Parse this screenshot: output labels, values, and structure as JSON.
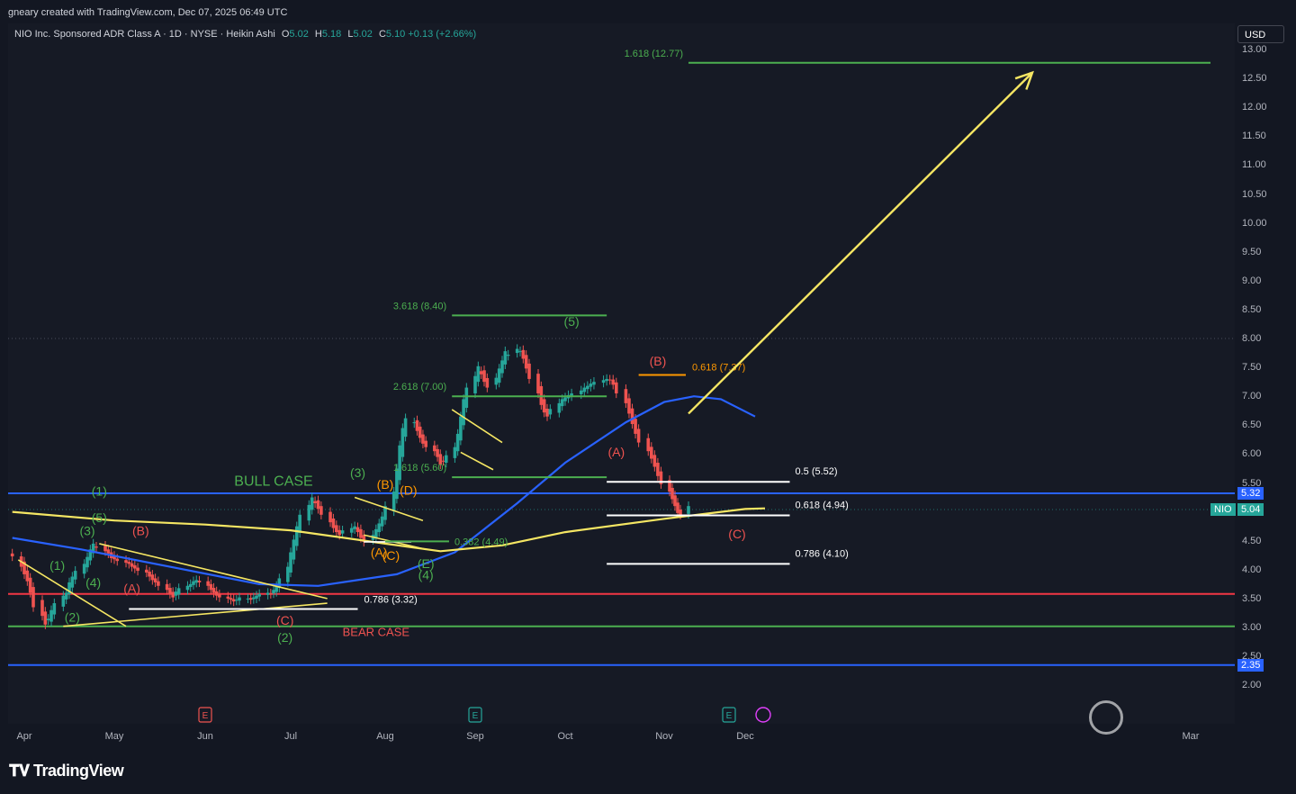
{
  "header": {
    "credit": "gneary created with TradingView.com, Dec 07, 2025 06:49 UTC",
    "symbol_desc": "NIO Inc. Sponsored ADR Class A · 1D · NYSE · Heikin Ashi",
    "open_label": "O",
    "open": "5.02",
    "high_label": "H",
    "high": "5.18",
    "low_label": "L",
    "low": "5.02",
    "close_label": "C",
    "close": "5.10",
    "change": "+0.13 (+2.66%)"
  },
  "currency_button": "USD",
  "footer": {
    "brand": "TradingView"
  },
  "colors": {
    "up": "#26a69a",
    "down": "#ef5350",
    "bg": "#161a25",
    "blue": "#2962ff",
    "yellow": "#f5e663",
    "green": "#4caf50",
    "red": "#f23645"
  },
  "chart_data": {
    "type": "candlestick",
    "style": "Heikin Ashi",
    "symbol": "NIO",
    "grid": false,
    "y_ticks": [
      "13.00",
      "12.50",
      "12.00",
      "11.50",
      "11.00",
      "10.50",
      "10.00",
      "9.50",
      "9.00",
      "8.50",
      "8.00",
      "7.50",
      "7.00",
      "6.50",
      "6.00",
      "5.50",
      "5.32",
      "5.04",
      "4.50",
      "4.00",
      "3.50",
      "3.00",
      "2.50",
      "2.35",
      "2.00"
    ],
    "x_ticks": [
      "Apr",
      "May",
      "Jun",
      "Jul",
      "Aug",
      "Sep",
      "Oct",
      "Nov",
      "Dec",
      "Mar"
    ],
    "price_badges": [
      {
        "label": "",
        "value": "5.32",
        "color": "#2962ff",
        "price": 5.32
      },
      {
        "label": "NIO",
        "value": "5.04",
        "color": "#26a69a",
        "price": 5.04
      },
      {
        "label": "",
        "value": "2.35",
        "color": "#2962ff",
        "price": 2.35
      }
    ],
    "horizontal_levels": [
      {
        "price": 5.32,
        "color": "#2962ff"
      },
      {
        "price": 3.58,
        "color": "#f23645"
      },
      {
        "price": 3.02,
        "color": "#4caf50"
      },
      {
        "price": 2.35,
        "color": "#2962ff"
      }
    ],
    "fib_levels": [
      {
        "label": "1.618 (12.77)",
        "price": 12.77,
        "start": "2025-11-10",
        "end": "2026-03-05",
        "color": "#4caf50"
      },
      {
        "label": "3.618 (8.40)",
        "price": 8.4,
        "start": "2025-08-24",
        "end": "2025-10-14",
        "color": "#4caf50"
      },
      {
        "label": "2.618 (7.00)",
        "price": 7.0,
        "start": "2025-08-24",
        "end": "2025-10-14",
        "color": "#4caf50"
      },
      {
        "label": "1.618 (5.60)",
        "price": 5.6,
        "start": "2025-08-24",
        "end": "2025-10-14",
        "color": "#4caf50"
      },
      {
        "label": "0.618 (7.37)",
        "price": 7.37,
        "start": "2025-10-24",
        "end": "2025-11-09",
        "color": "#ff9800"
      },
      {
        "label": "0.5 (5.52)",
        "price": 5.52,
        "start": "2025-10-14",
        "end": "2025-12-10",
        "color": "#ffffff"
      },
      {
        "label": "0.618 (4.94)",
        "price": 4.94,
        "start": "2025-10-14",
        "end": "2025-12-10",
        "color": "#ffffff"
      },
      {
        "label": "0.786 (4.10)",
        "price": 4.1,
        "start": "2025-10-14",
        "end": "2025-12-10",
        "color": "#ffffff"
      },
      {
        "label": "0.786 (3.32)",
        "price": 3.32,
        "start": "2025-05-06",
        "end": "2025-07-23",
        "color": "#ffffff"
      },
      {
        "label": "0.382 (4.49)",
        "price": 4.49,
        "start": "2025-08-01",
        "end": "2025-08-23",
        "color": "#4caf50"
      }
    ],
    "text_annotations": [
      {
        "text": "BULL CASE",
        "date": "2025-06-25",
        "price": 5.45,
        "color": "#4caf50",
        "size": 16
      },
      {
        "text": "BEAR CASE",
        "date": "2025-07-29",
        "price": 2.85,
        "color": "#ef5350",
        "size": 13
      },
      {
        "text": "(1)",
        "date": "2025-04-26",
        "price": 5.28,
        "color": "#4caf50",
        "size": 14
      },
      {
        "text": "(5)",
        "date": "2025-04-26",
        "price": 4.82,
        "color": "#4caf50",
        "size": 14
      },
      {
        "text": "(3)",
        "date": "2025-04-22",
        "price": 4.6,
        "color": "#4caf50",
        "size": 14
      },
      {
        "text": "(1)",
        "date": "2025-04-12",
        "price": 4.0,
        "color": "#4caf50",
        "size": 14
      },
      {
        "text": "(4)",
        "date": "2025-04-24",
        "price": 3.7,
        "color": "#4caf50",
        "size": 14
      },
      {
        "text": "(2)",
        "date": "2025-04-17",
        "price": 3.1,
        "color": "#4caf50",
        "size": 14
      },
      {
        "text": "(B)",
        "date": "2025-05-10",
        "price": 4.6,
        "color": "#ef5350",
        "size": 14
      },
      {
        "text": "(A)",
        "date": "2025-05-07",
        "price": 3.6,
        "color": "#ef5350",
        "size": 14
      },
      {
        "text": "(C)",
        "date": "2025-06-29",
        "price": 3.05,
        "color": "#ef5350",
        "size": 14
      },
      {
        "text": "(2)",
        "date": "2025-06-29",
        "price": 2.75,
        "color": "#4caf50",
        "size": 14
      },
      {
        "text": "(3)",
        "date": "2025-07-23",
        "price": 5.6,
        "color": "#4caf50",
        "size": 14
      },
      {
        "text": "(B)",
        "date": "2025-08-01",
        "price": 5.4,
        "color": "#ff9800",
        "size": 14
      },
      {
        "text": "(D)",
        "date": "2025-08-09",
        "price": 5.3,
        "color": "#ff9800",
        "size": 14
      },
      {
        "text": "(A)",
        "date": "2025-07-30",
        "price": 4.22,
        "color": "#ff9800",
        "size": 14
      },
      {
        "text": "(C)",
        "date": "2025-08-03",
        "price": 4.17,
        "color": "#ff9800",
        "size": 14
      },
      {
        "text": "(E)",
        "date": "2025-08-15",
        "price": 4.03,
        "color": "#4caf50",
        "size": 14
      },
      {
        "text": "(4)",
        "date": "2025-08-15",
        "price": 3.83,
        "color": "#4caf50",
        "size": 14
      },
      {
        "text": "(5)",
        "date": "2025-10-03",
        "price": 8.22,
        "color": "#4caf50",
        "size": 14
      },
      {
        "text": "(A)",
        "date": "2025-10-17",
        "price": 5.96,
        "color": "#ef5350",
        "size": 14
      },
      {
        "text": "(B)",
        "date": "2025-10-30",
        "price": 7.53,
        "color": "#ef5350",
        "size": 14
      },
      {
        "text": "(C)",
        "date": "2025-11-28",
        "price": 4.54,
        "color": "#ef5350",
        "size": 14
      }
    ],
    "moving_averages": [
      {
        "color": "#2962ff",
        "points": [
          [
            "2025-03-28",
            4.55
          ],
          [
            "2025-04-20",
            4.35
          ],
          [
            "2025-05-20",
            4.05
          ],
          [
            "2025-06-20",
            3.75
          ],
          [
            "2025-07-10",
            3.72
          ],
          [
            "2025-08-05",
            3.92
          ],
          [
            "2025-08-25",
            4.3
          ],
          [
            "2025-09-15",
            5.15
          ],
          [
            "2025-10-01",
            5.85
          ],
          [
            "2025-10-20",
            6.55
          ],
          [
            "2025-11-01",
            6.9
          ],
          [
            "2025-11-12",
            7.0
          ],
          [
            "2025-11-22",
            6.95
          ],
          [
            "2025-12-03",
            6.65
          ]
        ]
      },
      {
        "color": "#f5e663",
        "points": [
          [
            "2025-03-28",
            5.0
          ],
          [
            "2025-05-01",
            4.85
          ],
          [
            "2025-06-01",
            4.78
          ],
          [
            "2025-07-01",
            4.68
          ],
          [
            "2025-08-01",
            4.45
          ],
          [
            "2025-08-20",
            4.32
          ],
          [
            "2025-09-10",
            4.42
          ],
          [
            "2025-10-01",
            4.65
          ],
          [
            "2025-11-01",
            4.88
          ],
          [
            "2025-12-01",
            5.05
          ],
          [
            "2025-12-05",
            5.06
          ]
        ]
      }
    ],
    "trendlines": [
      {
        "color": "#f5e663",
        "points": [
          [
            "2025-03-30",
            4.17
          ],
          [
            "2025-05-05",
            3.02
          ]
        ]
      },
      {
        "color": "#f5e663",
        "points": [
          [
            "2025-04-26",
            4.45
          ],
          [
            "2025-07-13",
            3.5
          ]
        ]
      },
      {
        "color": "#f5e663",
        "points": [
          [
            "2025-04-14",
            3.02
          ],
          [
            "2025-07-13",
            3.42
          ]
        ]
      },
      {
        "color": "#f5e663",
        "points": [
          [
            "2025-07-22",
            5.25
          ],
          [
            "2025-08-14",
            4.85
          ]
        ]
      },
      {
        "color": "#f5e663",
        "points": [
          [
            "2025-07-25",
            4.6
          ],
          [
            "2025-08-15",
            4.35
          ]
        ]
      },
      {
        "color": "#f5e663",
        "points": [
          [
            "2025-08-24",
            6.77
          ],
          [
            "2025-09-10",
            6.2
          ]
        ]
      },
      {
        "color": "#f5e663",
        "points": [
          [
            "2025-08-27",
            6.03
          ],
          [
            "2025-09-07",
            5.73
          ]
        ]
      },
      {
        "color": "#ffffff",
        "points": [
          [
            "2025-07-25",
            4.48
          ],
          [
            "2025-08-10",
            4.48
          ]
        ]
      }
    ],
    "arrow": {
      "color": "#f5e663",
      "from": [
        "2025-11-10",
        6.7
      ],
      "to": [
        "2026-01-28",
        12.6
      ]
    },
    "earnings_markers": [
      {
        "date": "2025-06-01",
        "color": "#ef5350"
      },
      {
        "date": "2025-09-01",
        "color": "#26a69a"
      },
      {
        "date": "2025-11-25",
        "color": "#26a69a"
      }
    ],
    "candles": {
      "start": "2025-03-28",
      "dates_are_trading_days": true,
      "close": [
        4.23,
        4.05,
        3.92,
        3.8,
        3.6,
        3.35,
        3.2,
        3.05,
        3.15,
        3.3,
        3.42,
        3.55,
        3.6,
        3.78,
        3.88,
        3.98,
        4.1,
        4.22,
        4.35,
        4.45,
        4.38,
        4.32,
        4.28,
        4.2,
        4.18,
        4.15,
        4.12,
        4.1,
        4.05,
        4.02,
        3.98,
        3.95,
        3.88,
        3.82,
        3.78,
        3.72,
        3.65,
        3.58,
        3.52,
        3.62,
        3.68,
        3.72,
        3.75,
        3.8,
        3.82,
        3.78,
        3.72,
        3.65,
        3.6,
        3.55,
        3.52,
        3.5,
        3.48,
        3.45,
        3.48,
        3.52,
        3.5,
        3.48,
        3.52,
        3.55,
        3.58,
        3.6,
        3.58,
        3.65,
        3.72,
        3.85,
        4.05,
        4.3,
        4.52,
        4.75,
        4.95,
        5.12,
        5.25,
        5.15,
        5.05,
        4.95,
        4.82,
        4.72,
        4.65,
        4.6,
        4.68,
        4.72,
        4.75,
        4.65,
        4.55,
        4.48,
        4.6,
        4.7,
        4.8,
        4.92,
        5.1,
        5.35,
        5.75,
        6.15,
        6.45,
        6.62,
        6.55,
        6.4,
        6.28,
        6.18,
        6.12,
        6.05,
        5.95,
        5.82,
        5.88,
        5.98,
        6.12,
        6.35,
        6.65,
        6.95,
        7.15,
        7.35,
        7.52,
        7.38,
        7.25,
        7.15,
        7.32,
        7.48,
        7.62,
        7.78,
        7.72,
        7.82,
        7.78,
        7.65,
        7.48,
        7.3,
        7.05,
        6.85,
        6.72,
        6.65,
        6.78,
        6.88,
        6.95,
        6.98,
        7.02,
        7.05,
        7.1,
        7.15,
        7.18,
        7.22,
        7.25,
        7.28,
        7.3,
        7.28,
        7.2,
        7.05,
        6.88,
        6.7,
        6.52,
        6.35,
        6.2,
        6.05,
        5.92,
        5.78,
        5.62,
        5.48,
        5.35,
        5.22,
        5.1,
        4.98,
        4.95,
        5.1
      ]
    }
  }
}
